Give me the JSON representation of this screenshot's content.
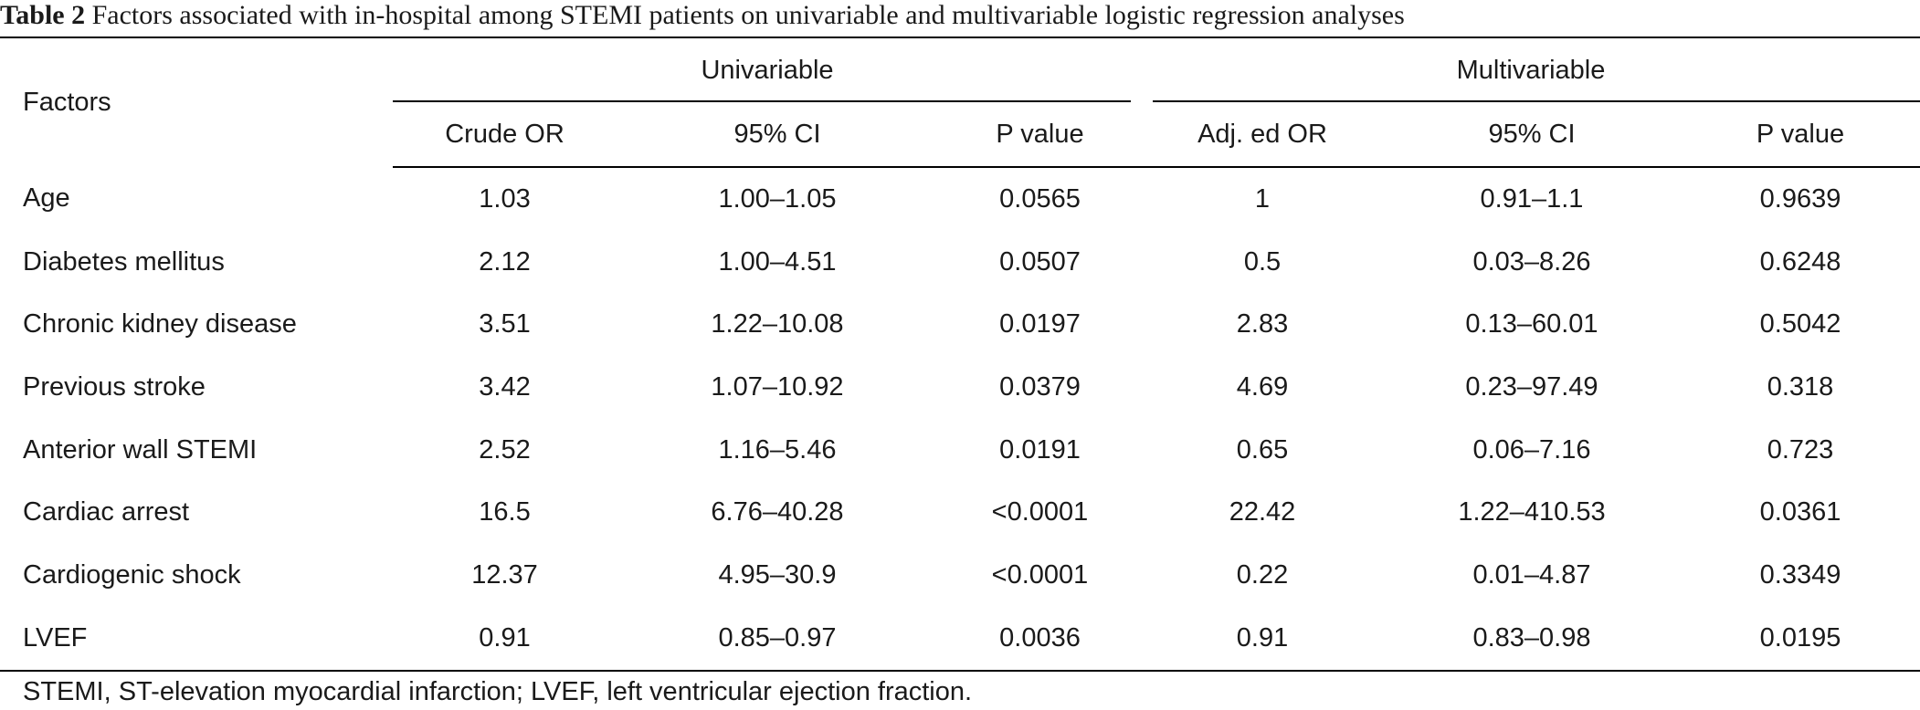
{
  "caption": {
    "label": "Table 2",
    "text": "Factors associated with in-hospital among STEMI patients on univariable and multivariable logistic regression analyses"
  },
  "header": {
    "factors": "Factors",
    "univariable": "Univariable",
    "multivariable": "Multivariable",
    "columns": [
      "Crude OR",
      "95% CI",
      "P value",
      "Adj. ed OR",
      "95% CI",
      "P value"
    ]
  },
  "rows": [
    {
      "factor": "Age",
      "cells": [
        "1.03",
        "1.00–1.05",
        "0.0565",
        "1",
        "0.91–1.1",
        "0.9639"
      ]
    },
    {
      "factor": "Diabetes mellitus",
      "cells": [
        "2.12",
        "1.00–4.51",
        "0.0507",
        "0.5",
        "0.03–8.26",
        "0.6248"
      ]
    },
    {
      "factor": "Chronic kidney disease",
      "cells": [
        "3.51",
        "1.22–10.08",
        "0.0197",
        "2.83",
        "0.13–60.01",
        "0.5042"
      ]
    },
    {
      "factor": "Previous stroke",
      "cells": [
        "3.42",
        "1.07–10.92",
        "0.0379",
        "4.69",
        "0.23–97.49",
        "0.318"
      ]
    },
    {
      "factor": "Anterior wall STEMI",
      "cells": [
        "2.52",
        "1.16–5.46",
        "0.0191",
        "0.65",
        "0.06–7.16",
        "0.723"
      ]
    },
    {
      "factor": "Cardiac arrest",
      "cells": [
        "16.5",
        "6.76–40.28",
        "<0.0001",
        "22.42",
        "1.22–410.53",
        "0.0361"
      ]
    },
    {
      "factor": "Cardiogenic shock",
      "cells": [
        "12.37",
        "4.95–30.9",
        "<0.0001",
        "0.22",
        "0.01–4.87",
        "0.3349"
      ]
    },
    {
      "factor": "LVEF",
      "cells": [
        "0.91",
        "0.85–0.97",
        "0.0036",
        "0.91",
        "0.83–0.98",
        "0.0195"
      ]
    }
  ],
  "footnote": "STEMI, ST-elevation myocardial infarction; LVEF, left ventricular ejection fraction."
}
